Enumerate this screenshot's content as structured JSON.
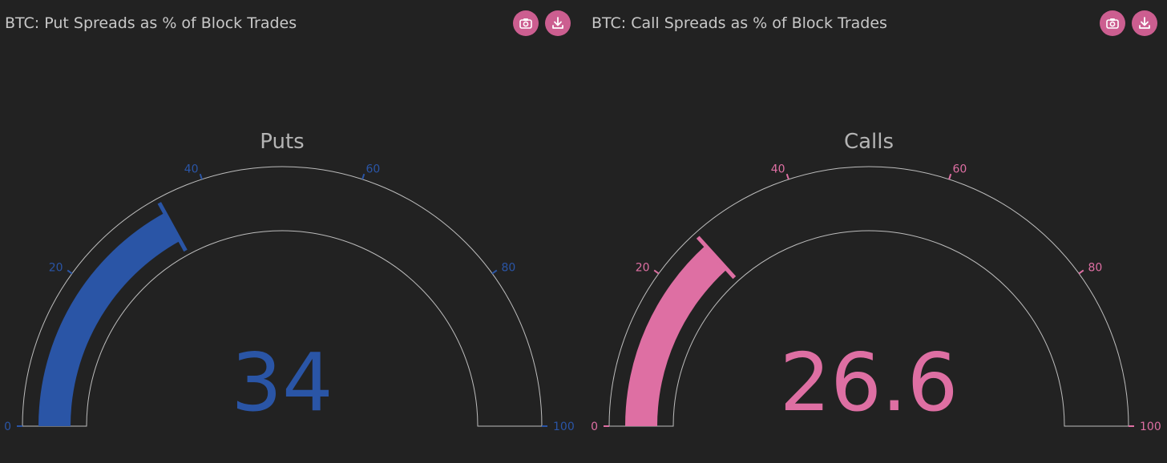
{
  "colors": {
    "background": "#222222",
    "title_text": "#c8c8c8",
    "gauge_outline": "#bdbdbd",
    "button_bg": "#cc5e90"
  },
  "panels": [
    {
      "id": "puts",
      "title": "BTC: Put Spreads as % of Block Trades",
      "buttons": [
        {
          "name": "camera-button",
          "icon": "camera-icon"
        },
        {
          "name": "download-button",
          "icon": "download-icon"
        }
      ]
    },
    {
      "id": "calls",
      "title": "BTC: Call Spreads as % of Block Trades",
      "buttons": [
        {
          "name": "camera-button",
          "icon": "camera-icon"
        },
        {
          "name": "download-button",
          "icon": "download-icon"
        }
      ]
    }
  ],
  "chart_data": [
    {
      "type": "gauge",
      "title": "Puts",
      "value": 34,
      "value_label": "34",
      "range": [
        0,
        100
      ],
      "ticks": [
        0,
        20,
        40,
        60,
        80,
        100
      ],
      "tick_labels": [
        "0",
        "20",
        "40",
        "60",
        "80",
        "100"
      ],
      "color": "#2a55a6"
    },
    {
      "type": "gauge",
      "title": "Calls",
      "value": 26.6,
      "value_label": "26.6",
      "range": [
        0,
        100
      ],
      "ticks": [
        0,
        20,
        40,
        60,
        80,
        100
      ],
      "tick_labels": [
        "0",
        "20",
        "40",
        "60",
        "80",
        "100"
      ],
      "color": "#de6fa3"
    }
  ]
}
